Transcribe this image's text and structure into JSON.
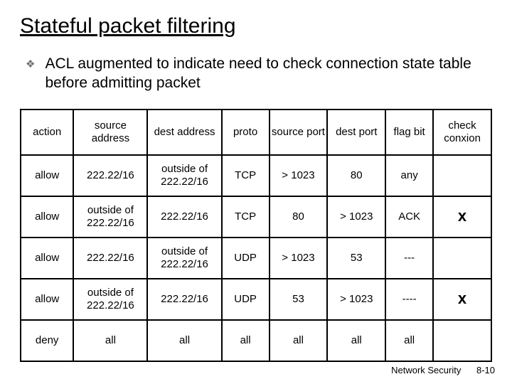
{
  "title": "Stateful packet filtering",
  "bullet": "ACL augmented to indicate need to check connection state table before admitting packet",
  "table": {
    "columns": [
      "action",
      "source address",
      "dest address",
      "proto",
      "source port",
      "dest port",
      "flag bit",
      "check conxion"
    ],
    "rows": [
      [
        "allow",
        "222.22/16",
        "outside of 222.22/16",
        "TCP",
        "> 1023",
        "80",
        "any",
        ""
      ],
      [
        "allow",
        "outside of 222.22/16",
        "222.22/16",
        "TCP",
        "80",
        "> 1023",
        "ACK",
        "x"
      ],
      [
        "allow",
        "222.22/16",
        "outside of 222.22/16",
        "UDP",
        "> 1023",
        "53",
        "---",
        ""
      ],
      [
        "allow",
        "outside of 222.22/16",
        "222.22/16",
        "UDP",
        "53",
        "> 1023",
        "----",
        "x"
      ],
      [
        "deny",
        "all",
        "all",
        "all",
        "all",
        "all",
        "all",
        ""
      ]
    ]
  },
  "footer": {
    "label": "Network Security",
    "page": "8-10"
  },
  "colors": {
    "background": "#ffffff",
    "text": "#000000",
    "bullet_icon": "#707070",
    "border": "#000000"
  }
}
